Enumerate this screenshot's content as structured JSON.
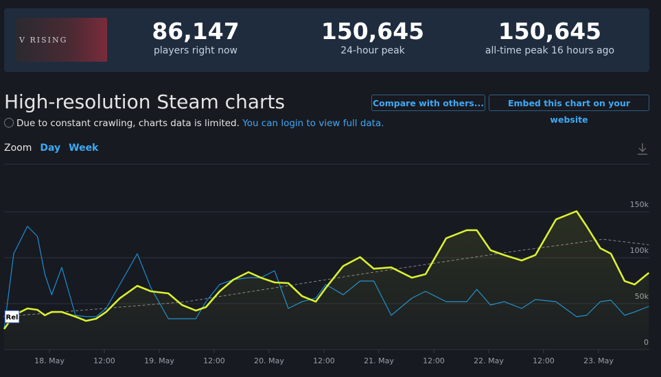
{
  "header": {
    "logo_text": "V RISING",
    "stats": [
      {
        "value": "86,147",
        "label": "players right now"
      },
      {
        "value": "150,645",
        "label": "24-hour peak"
      },
      {
        "value": "150,645",
        "label": "all-time peak 16 hours ago"
      }
    ]
  },
  "title": "High-resolution Steam charts",
  "buttons": [
    "Compare with others...",
    "Embed this chart on your website"
  ],
  "notice": {
    "text": "Due to constant crawling, charts data is limited.",
    "link": "You can login to view full data."
  },
  "zoom": {
    "label": "Zoom",
    "options": [
      "Day",
      "Week"
    ]
  },
  "chart_data": {
    "type": "line",
    "annotation": "Rel",
    "x": [
      -9.9,
      -7.8,
      -4.8,
      -2.6,
      -1,
      0.5,
      2.7,
      5.7,
      8,
      10.2,
      12.4,
      15.4,
      19.2,
      22.2,
      26,
      29,
      32,
      34.2,
      37.2,
      40.2,
      43.5,
      46.2,
      49.2,
      52.2,
      55.2,
      58.2,
      60.4,
      64.2,
      67.9,
      70.9,
      74.7,
      79.2,
      82.2,
      86.7,
      91.2,
      93.4,
      96.4,
      99.4,
      103.2,
      106.2,
      110.7,
      115.2,
      117.4,
      120.4,
      122.7,
      125.7,
      127.9,
      131
    ],
    "series": [
      {
        "color": "#1a8fd6",
        "values": [
          22400,
          104400,
          134300,
          123100,
          82100,
          59700,
          89500,
          37300,
          35800,
          35800,
          44800,
          70900,
          104400,
          67100,
          33600,
          33600,
          33600,
          52200,
          70900,
          76100,
          78300,
          78300,
          85800,
          44800,
          52200,
          55900,
          70900,
          59700,
          74600,
          74600,
          37300,
          56000,
          63400,
          52200,
          52200,
          65600,
          48500,
          52200,
          44800,
          54500,
          52200,
          35800,
          37300,
          52200,
          53700,
          37300,
          41000,
          47000
        ]
      },
      {
        "color": "#888888",
        "dashed": true,
        "x": [
          -10,
          30,
          70,
          100,
          121,
          131
        ],
        "values": [
          35800,
          52200,
          83600,
          105900,
          120100,
          114100
        ]
      },
      {
        "color": "#dcf22e",
        "area": true,
        "values": [
          22400,
          37300,
          44800,
          43300,
          37300,
          41000,
          41000,
          35800,
          31300,
          33600,
          41000,
          55900,
          69400,
          63400,
          61200,
          48500,
          42500,
          46300,
          63400,
          76100,
          84300,
          78300,
          73100,
          72400,
          58200,
          52200,
          67100,
          91000,
          100700,
          88000,
          89500,
          78300,
          82100,
          121200,
          130000,
          130000,
          108200,
          102900,
          97000,
          102900,
          141700,
          150700,
          134300,
          110400,
          104400,
          74600,
          70900,
          83600
        ]
      }
    ],
    "xlim": [
      -10,
      131
    ],
    "xticks": [
      {
        "value": 0,
        "label": "18. May"
      },
      {
        "value": 12,
        "label": "12:00"
      },
      {
        "value": 24,
        "label": "19. May"
      },
      {
        "value": 36,
        "label": "12:00"
      },
      {
        "value": 48,
        "label": "20. May"
      },
      {
        "value": 60,
        "label": "12:00"
      },
      {
        "value": 72,
        "label": "21. May"
      },
      {
        "value": 84,
        "label": "12:00"
      },
      {
        "value": 96,
        "label": "22. May"
      },
      {
        "value": 108,
        "label": "12:00"
      },
      {
        "value": 120,
        "label": "23. May"
      }
    ],
    "ylim": [
      0,
      200000
    ],
    "yticks": [
      0,
      {
        "value": 50000,
        "label": "50k"
      },
      {
        "value": 100000,
        "label": "100k"
      },
      {
        "value": 150000,
        "label": "150k"
      }
    ],
    "grid": true
  }
}
